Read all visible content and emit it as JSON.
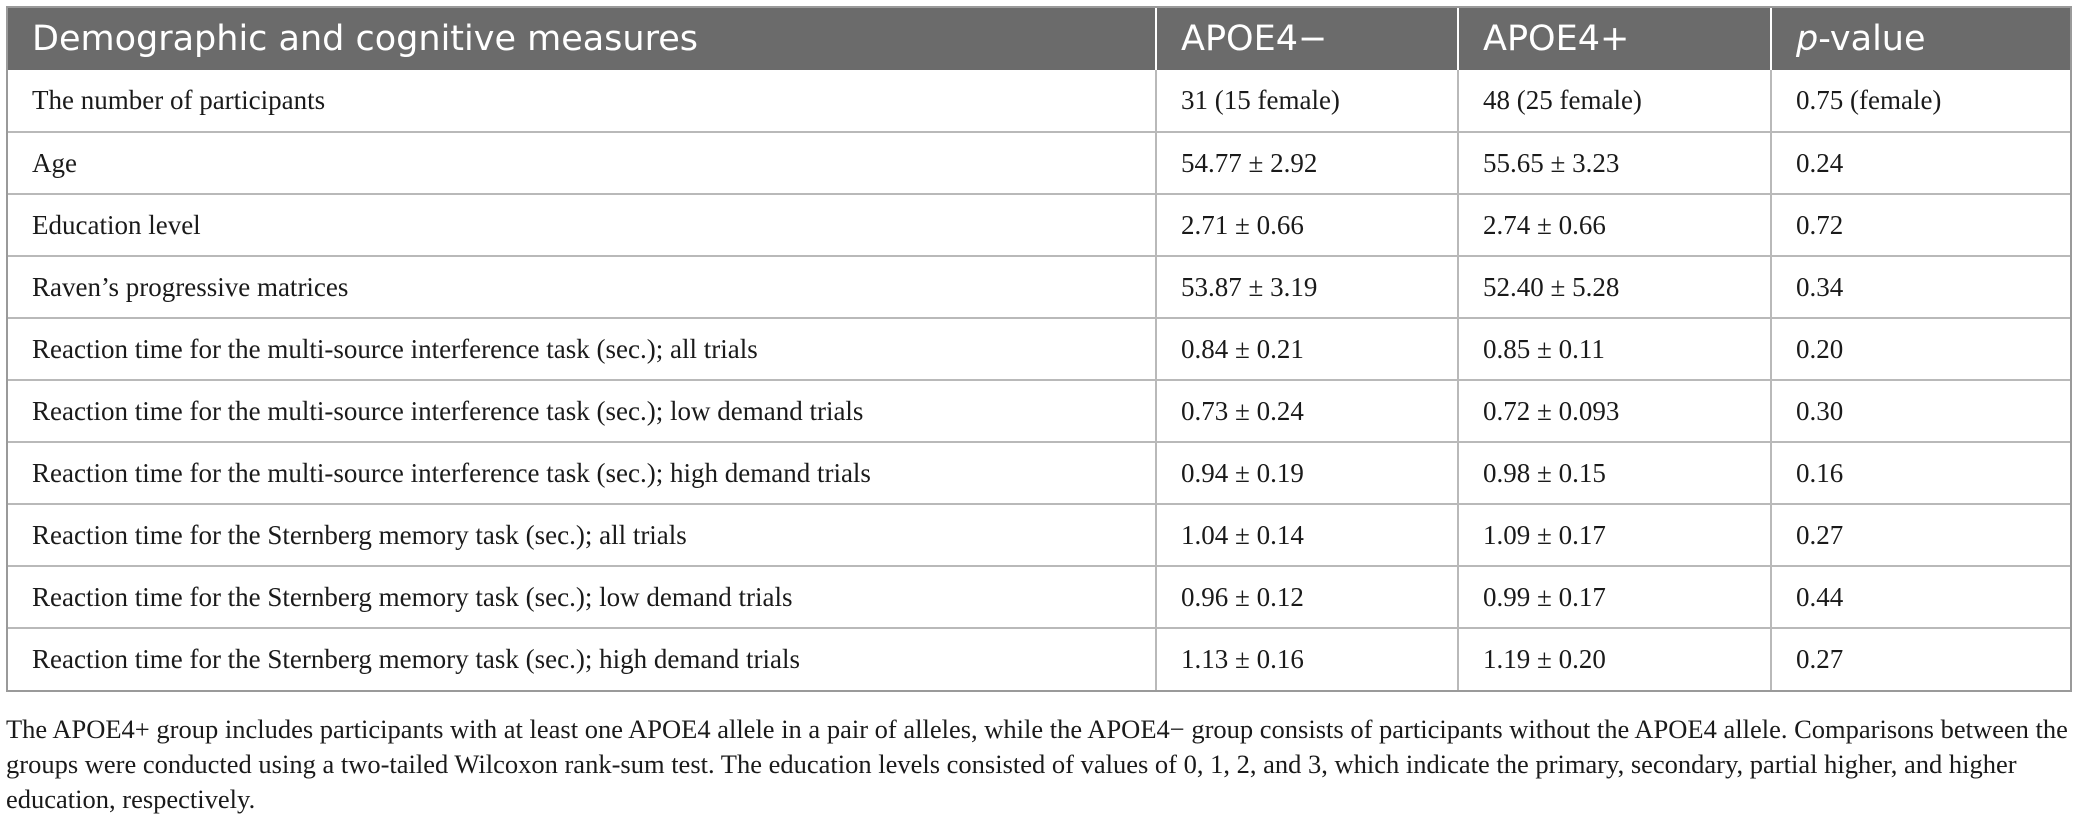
{
  "table": {
    "headers": [
      "Demographic and cognitive measures",
      "APOE4−",
      "APOE4+",
      "p-value"
    ],
    "header_pvalue_prefix": "p",
    "header_pvalue_suffix": "-value",
    "rows": [
      [
        "The number of participants",
        "31 (15 female)",
        "48 (25 female)",
        "0.75 (female)"
      ],
      [
        "Age",
        "54.77 ± 2.92",
        "55.65 ± 3.23",
        "0.24"
      ],
      [
        "Education level",
        "2.71 ± 0.66",
        "2.74 ± 0.66",
        "0.72"
      ],
      [
        "Raven’s progressive matrices",
        "53.87 ± 3.19",
        "52.40 ± 5.28",
        "0.34"
      ],
      [
        "Reaction time for the multi-source interference task (sec.); all trials",
        "0.84 ± 0.21",
        "0.85 ± 0.11",
        "0.20"
      ],
      [
        "Reaction time for the multi-source interference task (sec.); low demand trials",
        "0.73 ± 0.24",
        "0.72 ± 0.093",
        "0.30"
      ],
      [
        "Reaction time for the multi-source interference task (sec.); high demand trials",
        "0.94 ± 0.19",
        "0.98 ± 0.15",
        "0.16"
      ],
      [
        "Reaction time for the Sternberg memory task (sec.); all trials",
        "1.04 ± 0.14",
        "1.09 ± 0.17",
        "0.27"
      ],
      [
        "Reaction time for the Sternberg memory task (sec.); low demand trials",
        "0.96 ± 0.12",
        "0.99 ± 0.17",
        "0.44"
      ],
      [
        "Reaction time for the Sternberg memory task (sec.); high demand trials",
        "1.13 ± 0.16",
        "1.19 ± 0.20",
        "0.27"
      ]
    ]
  },
  "footnote": "The APOE4+ group includes participants with at least one APOE4 allele in a pair of alleles, while the APOE4− group consists of participants without the APOE4 allele. Comparisons between the groups were conducted using a two-tailed Wilcoxon rank-sum test. The education levels consisted of values of 0, 1, 2, and 3, which indicate the primary, secondary, partial higher, and higher education, respectively.",
  "colors": {
    "header_bg": "#6b6b6b",
    "header_text": "#ffffff",
    "grid_line": "#b9b9b9",
    "body_text": "#1a1a1a"
  }
}
